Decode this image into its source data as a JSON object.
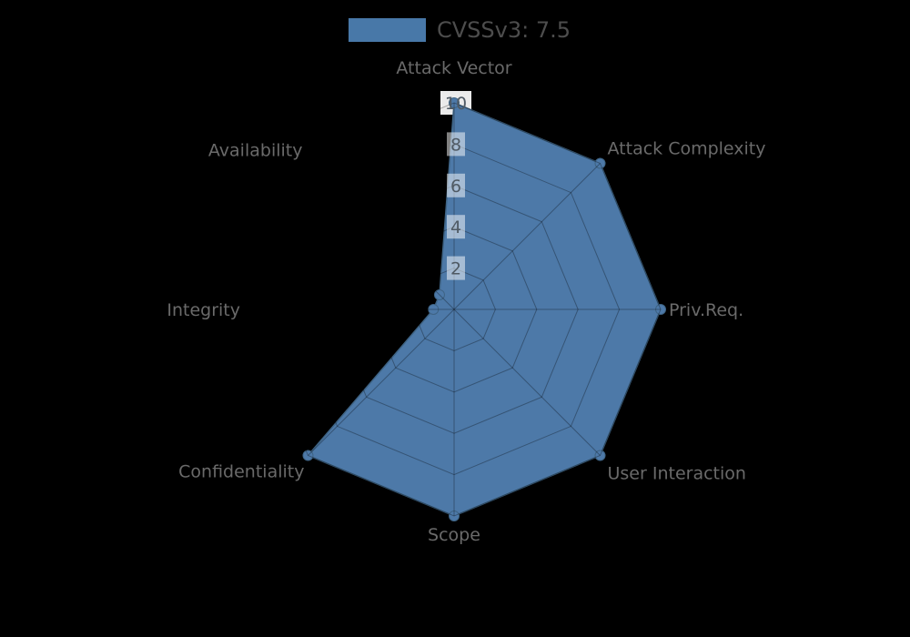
{
  "chart_data": {
    "type": "radar",
    "legend": {
      "label": "CVSSv3: 7.5",
      "position": "top-center"
    },
    "axes": [
      "Attack Vector",
      "Attack Complexity",
      "Priv.Req.",
      "User Interaction",
      "Scope",
      "Confidentiality",
      "Integrity",
      "Availability"
    ],
    "series": [
      {
        "name": "CVSSv3: 7.5",
        "values": [
          10,
          10,
          10,
          10,
          10,
          10,
          1,
          1
        ],
        "color": "#4d79a8"
      }
    ],
    "r_ticks": [
      2,
      4,
      6,
      8,
      10
    ],
    "r_min": 0,
    "r_max": 10,
    "grid": true,
    "markers": true
  },
  "style": {
    "background_color": "#000000",
    "fill_color": "#4d79a8",
    "edge_color": "#3e6384",
    "grid_color": "rgba(0,0,0,0.3)",
    "axis_label_color": "#6a6a6a",
    "tick_text_color": "#4f5a64",
    "tick_box_color_inner": "rgba(255,255,255,0.5)",
    "tick_box_color_outer": "rgba(255,255,255,0.92)",
    "legend_text_color": "#4d4d4d",
    "legend_swatch_color": "#4878a8"
  }
}
